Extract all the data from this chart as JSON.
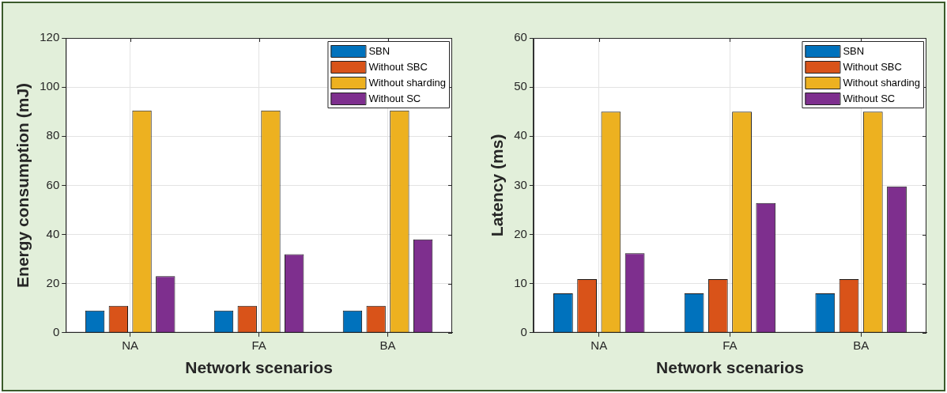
{
  "chart_data": [
    {
      "type": "bar",
      "xlabel": "Network scenarios",
      "ylabel": "Energy consumption (mJ)",
      "categories": [
        "NA",
        "FA",
        "BA"
      ],
      "series": [
        {
          "name": "SBN",
          "color": "#0072bd",
          "values": [
            9,
            9,
            9
          ]
        },
        {
          "name": "Without SBC",
          "color": "#d95319",
          "values": [
            11,
            11,
            11
          ]
        },
        {
          "name": "Without sharding",
          "color": "#edb120",
          "values": [
            90.5,
            90.5,
            90.5
          ]
        },
        {
          "name": "Without SC",
          "color": "#7e2f8e",
          "values": [
            23,
            32,
            38
          ]
        }
      ],
      "ylim": [
        0,
        120
      ],
      "yticks": [
        0,
        20,
        40,
        60,
        80,
        100,
        120
      ],
      "grid": true,
      "legend": "top right"
    },
    {
      "type": "bar",
      "xlabel": "Network scenarios",
      "ylabel": "Latency (ms)",
      "categories": [
        "NA",
        "FA",
        "BA"
      ],
      "series": [
        {
          "name": "SBN",
          "color": "#0072bd",
          "values": [
            8,
            8,
            8
          ]
        },
        {
          "name": "Without SBC",
          "color": "#d95319",
          "values": [
            10.9,
            10.9,
            10.9
          ]
        },
        {
          "name": "Without sharding",
          "color": "#edb120",
          "values": [
            45,
            45,
            45
          ]
        },
        {
          "name": "Without SC",
          "color": "#7e2f8e",
          "values": [
            16.2,
            26.4,
            29.8
          ]
        }
      ],
      "ylim": [
        0,
        60
      ],
      "yticks": [
        0,
        10,
        20,
        30,
        40,
        50,
        60
      ],
      "grid": true,
      "legend": "top right"
    }
  ]
}
